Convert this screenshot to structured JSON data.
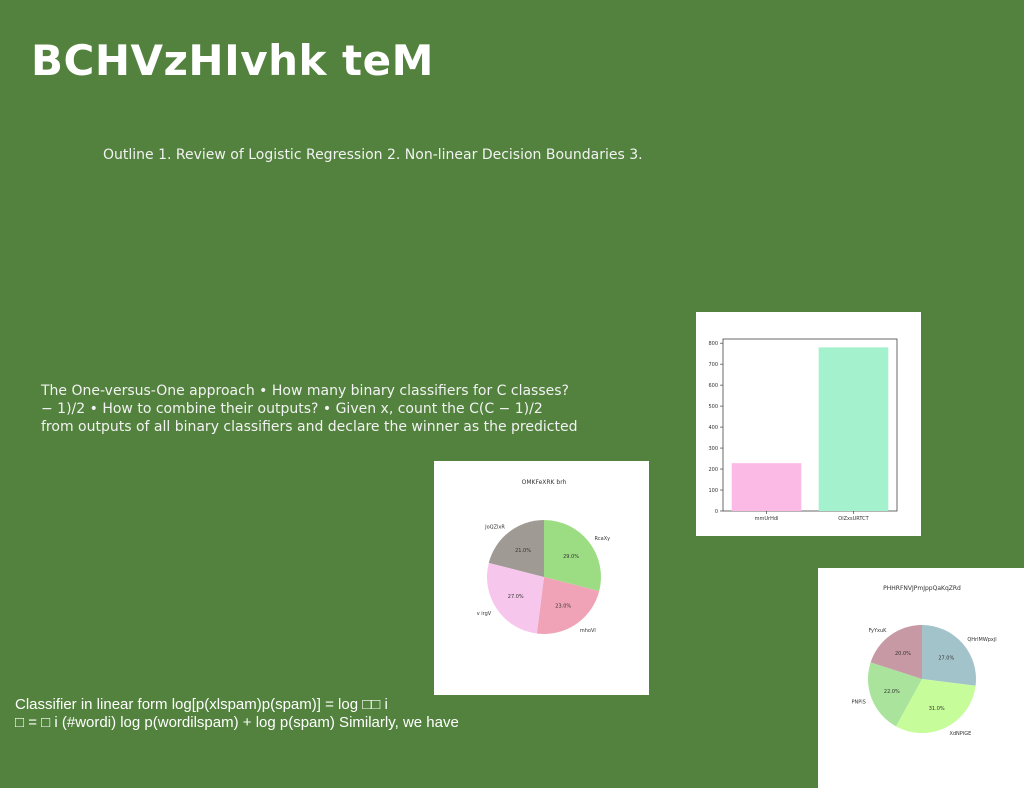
{
  "slide": {
    "title": "BCHVzHIvhk teM",
    "outline": "Outline 1. Review of Logistic Regression 2. Non-linear Decision Boundaries 3.",
    "ovo_lines": [
      "The One-versus-One approach • How many binary classifiers for C classes?",
      "− 1)/2 • How to combine their outputs? • Given x, count the C(C − 1)/2",
      "from outputs of all binary classifiers and declare the winner as the predicted"
    ],
    "classifier_lines": [
      "Classifier in linear form log[p(xlspam)p(spam)] = log □□ i",
      "□ = □ i (#wordi) log p(wordilspam) + log p(spam) Similarly, we have"
    ]
  },
  "chart_data": [
    {
      "type": "bar",
      "title": "",
      "categories": [
        "mmUrHdl",
        "OlZxsURTCT"
      ],
      "values": [
        228,
        780
      ],
      "colors": [
        "#fbb9e6",
        "#a3f1cd"
      ],
      "ylim": [
        0,
        820
      ],
      "yticks": [
        0,
        100,
        200,
        300,
        400,
        500,
        600,
        700,
        800
      ],
      "xlabel": "",
      "ylabel": ""
    },
    {
      "type": "pie",
      "title": "OMKFeXRK brh",
      "labels": [
        "RcaXy",
        "mhoVl",
        "v irgV",
        "JoQZlxR"
      ],
      "values": [
        29.0,
        23.0,
        27.0,
        21.0
      ],
      "colors": [
        "#9cdd84",
        "#f0a3b6",
        "#f7c6ec",
        "#a09a94"
      ]
    },
    {
      "type": "pie",
      "title": "PHHRFNVJPmJppQaKqZRd",
      "labels": [
        "QHrlMWpxjl",
        "XdNPIGE",
        "PNPiS",
        "FyYxuK"
      ],
      "values": [
        27.0,
        31.0,
        22.0,
        20.0
      ],
      "colors": [
        "#a3c3cb",
        "#c6fc9a",
        "#a9e39c",
        "#c799a5"
      ]
    }
  ]
}
